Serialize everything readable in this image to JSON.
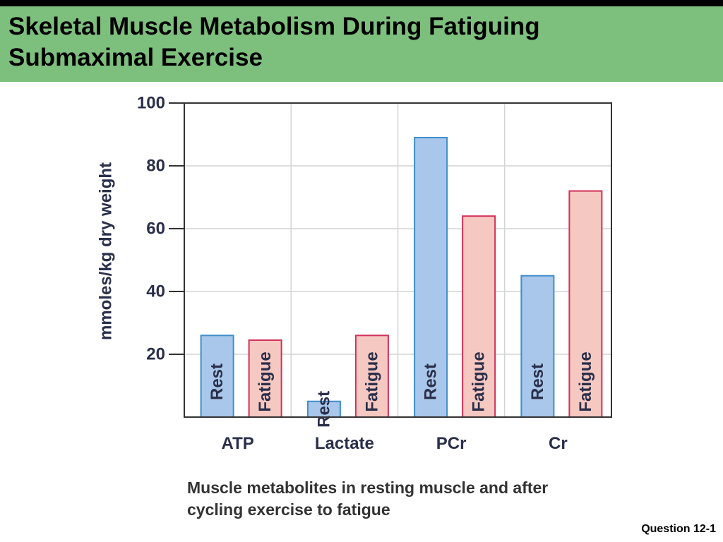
{
  "slide": {
    "title_line1": "Skeletal Muscle Metabolism During Fatiguing",
    "title_line2": "Submaximal Exercise",
    "caption_line1": "Muscle metabolites in resting muscle and after",
    "caption_line2": "cycling exercise to fatigue",
    "footer": "Question 12-1"
  },
  "colors": {
    "title_band": "#7dbf7d",
    "rest_fill": "#a9c7ea",
    "rest_stroke": "#3f8ec9",
    "fatigue_fill": "#f6c8c2",
    "fatigue_stroke": "#d2305a"
  },
  "chart_data": {
    "type": "bar",
    "categories": [
      "ATP",
      "Lactate",
      "PCr",
      "Cr"
    ],
    "series": [
      {
        "name": "Rest",
        "values": [
          26,
          5,
          89,
          45
        ]
      },
      {
        "name": "Fatigue",
        "values": [
          24.5,
          26,
          64,
          72
        ]
      }
    ],
    "ylabel": "mmoles/kg dry weight",
    "xlabel": "",
    "yticks": [
      20,
      40,
      60,
      80,
      100
    ],
    "ylim": [
      0,
      100
    ],
    "grid": true,
    "bar_labels_inside": true
  }
}
